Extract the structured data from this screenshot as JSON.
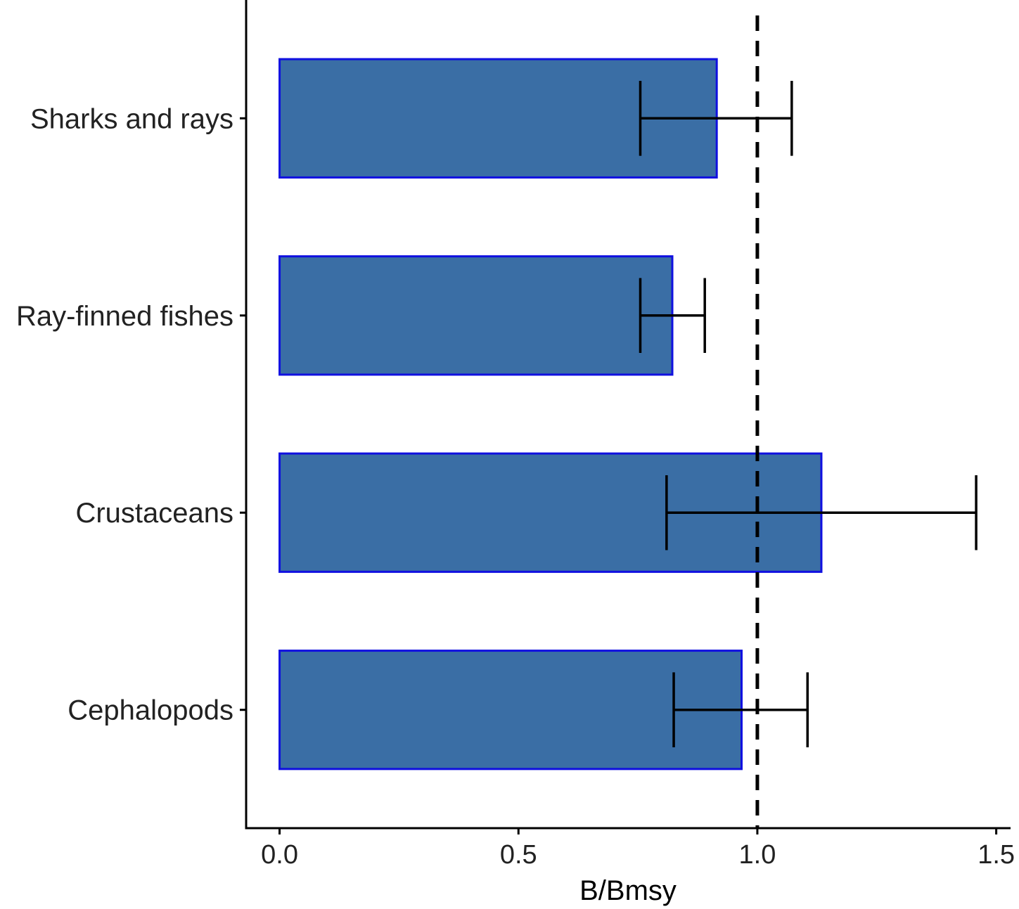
{
  "chart_data": {
    "type": "bar",
    "orientation": "horizontal",
    "title": "",
    "xlabel": "B/Bmsy",
    "ylabel": "",
    "categories": [
      "Sharks and rays",
      "Ray-finned fishes",
      "Crustaceans",
      "Cephalopods"
    ],
    "values": [
      0.915,
      0.822,
      1.134,
      0.967
    ],
    "error_low": [
      0.755,
      0.755,
      0.81,
      0.825
    ],
    "error_high": [
      1.072,
      0.89,
      1.458,
      1.105
    ],
    "xlim": [
      -0.07,
      1.53
    ],
    "xticks": [
      0.0,
      0.5,
      1.0,
      1.5
    ],
    "xtick_labels": [
      "0.0",
      "0.5",
      "1.0",
      "1.5"
    ],
    "reference_line": {
      "x": 1.0,
      "style": "dashed",
      "color": "#000000"
    },
    "grid": false,
    "legend": "none",
    "colors": {
      "bar_fill": "#3A6EA5",
      "bar_stroke": "#1010E0",
      "axis": "#000000",
      "error_bar": "#000000"
    }
  }
}
